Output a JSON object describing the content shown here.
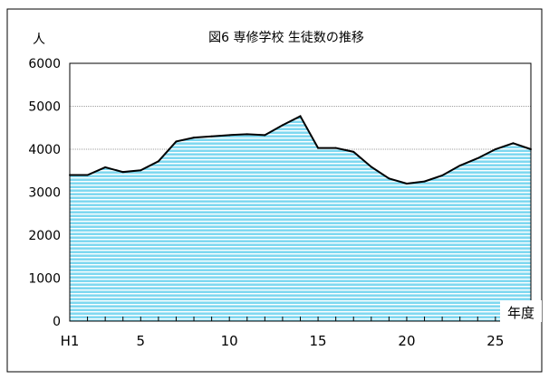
{
  "chart_data": {
    "type": "area",
    "title": "図6 専修学校 生徒数の推移",
    "ylabel": "人",
    "xlabel": "年度",
    "ylim": [
      0,
      6000
    ],
    "yticks": [
      0,
      1000,
      2000,
      3000,
      4000,
      5000,
      6000
    ],
    "xticks": [
      {
        "x": 1,
        "label": "H1"
      },
      {
        "x": 5,
        "label": "5"
      },
      {
        "x": 10,
        "label": "10"
      },
      {
        "x": 15,
        "label": "15"
      },
      {
        "x": 20,
        "label": "20"
      },
      {
        "x": 25,
        "label": "25"
      }
    ],
    "xlim": [
      1,
      27
    ],
    "grid": "horizontal",
    "colors": {
      "fill": "#7fd8f0",
      "stripe": "#ffffff",
      "line": "#000000",
      "grid": "#808080"
    },
    "series": [
      {
        "x": [
          1,
          2,
          3,
          4,
          5,
          6,
          7,
          8,
          9,
          10,
          11,
          12,
          13,
          14,
          15,
          16,
          17,
          18,
          19,
          20,
          21,
          22,
          23,
          24,
          25,
          26,
          27
        ],
        "values": [
          3400,
          3400,
          3580,
          3470,
          3510,
          3720,
          4180,
          4270,
          4300,
          4330,
          4350,
          4330,
          4560,
          4770,
          4030,
          4030,
          3940,
          3590,
          3320,
          3200,
          3250,
          3390,
          3620,
          3790,
          4000,
          4140,
          4000
        ]
      }
    ]
  }
}
